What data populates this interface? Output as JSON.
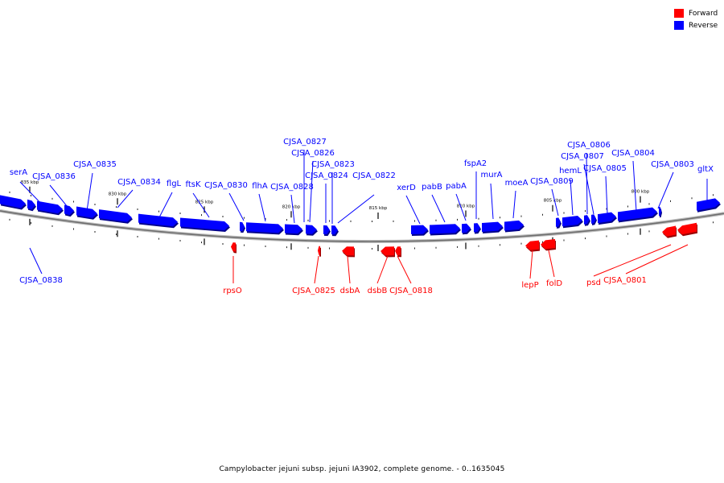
{
  "legend": [
    {
      "label": "Forward",
      "color": "#ff0000"
    },
    {
      "label": "Reverse",
      "color": "#0000ff"
    }
  ],
  "caption": "Campylobacter jejuni subsp. jejuni IA3902, complete genome. - 0..1635045",
  "colors": {
    "forward": "#ff0000",
    "reverse": "#0000ff",
    "backbone": "#888888"
  },
  "ticks": [
    "835 kbp",
    "830 kbp",
    "825 kbp",
    "820 kbp",
    "815 kbp",
    "810 kbp",
    "805 kbp",
    "800 kbp"
  ],
  "reverse_labels": [
    "serA",
    "CJSA_0836",
    "CJSA_0835",
    "CJSA_0834",
    "flgL",
    "ftsK",
    "CJSA_0830",
    "flhA",
    "CJSA_0828",
    "CJSA_0827",
    "CJSA_0826",
    "CJSA_0823",
    "CJSA_0824",
    "CJSA_0822",
    "xerD",
    "pabB",
    "pabA",
    "fspA2",
    "murA",
    "moeA",
    "CJSA_0809",
    "hemL",
    "CJSA_0806",
    "CJSA_0807",
    "CJSA_0805",
    "CJSA_0804",
    "CJSA_0803",
    "gltX",
    "CJSA_0838"
  ],
  "forward_labels": [
    "rpsO",
    "CJSA_0825",
    "dsbA",
    "dsbB",
    "CJSA_0818",
    "lepP",
    "folD",
    "psd",
    "CJSA_0801"
  ]
}
